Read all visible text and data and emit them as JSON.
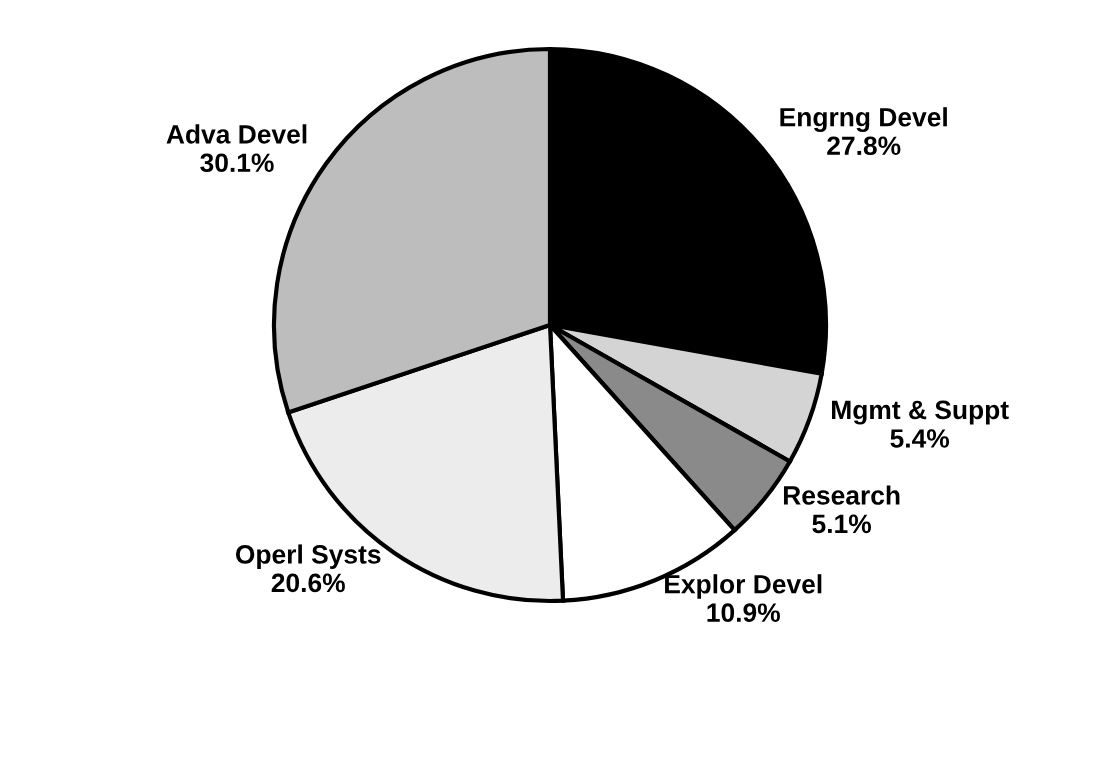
{
  "chart_data": {
    "type": "pie",
    "categories": [
      "Engrng Devel",
      "Mgmt & Suppt",
      "Research",
      "Explor Devel",
      "Operl Systs",
      "Adva Devel"
    ],
    "values": [
      27.8,
      5.4,
      5.1,
      10.9,
      20.6,
      30.1
    ],
    "value_labels": [
      "27.8%",
      "5.4%",
      "5.1%",
      "10.9%",
      "20.6%",
      "30.1%"
    ],
    "colors": [
      "#000000",
      "#d4d4d4",
      "#8a8a8a",
      "#ffffff",
      "#ececec",
      "#bdbdbd"
    ],
    "legend": false
  }
}
